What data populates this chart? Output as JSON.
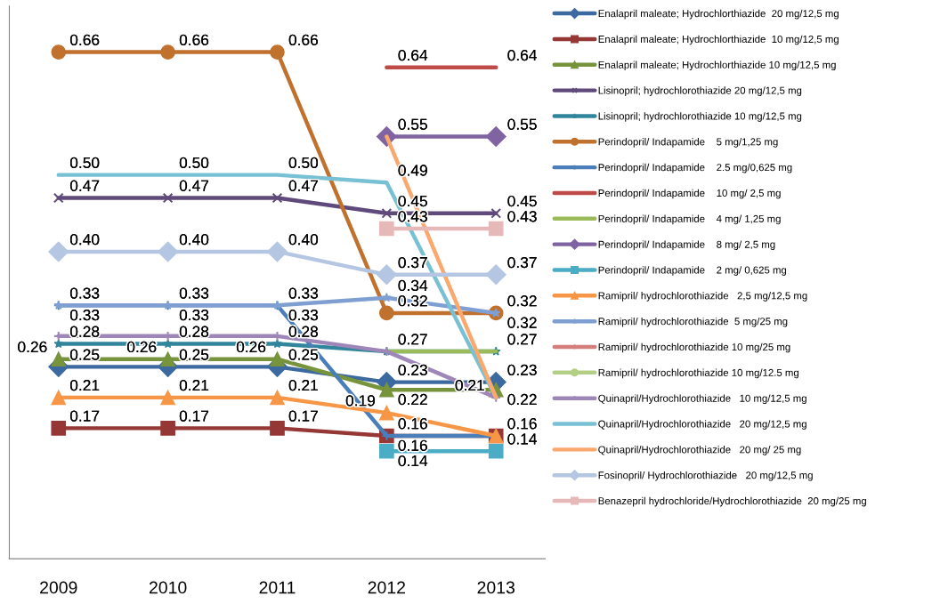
{
  "chart_data": {
    "type": "line",
    "categories": [
      "2009",
      "2010",
      "2011",
      "2012",
      "2013"
    ],
    "ylim": [
      0,
      0.72
    ],
    "tick_labels": "x",
    "grid": false,
    "legend": "right",
    "line_style": "solid",
    "series": [
      {
        "name": "Enalapril maleate; Hydrochlorthiazide  20 mg/12,5 mg",
        "color": "#3c6aa0",
        "marker": "diamond",
        "values": [
          0.25,
          0.25,
          0.25,
          0.23,
          0.23
        ],
        "value_labels": [
          "0.25",
          "0.25",
          "0.25",
          "0.23",
          "0.23"
        ]
      },
      {
        "name": "Enalapril maleate; Hydrochlorthiazide  10 mg/12,5 mg",
        "color": "#953735",
        "marker": "square",
        "values": [
          0.17,
          0.17,
          0.17,
          0.16,
          0.16
        ],
        "value_labels": [
          "0.17",
          "0.17",
          "0.17",
          "0.16",
          null
        ]
      },
      {
        "name": "Enalapril maleate; Hydrochlorthiazide 10 mg/12,5 mg",
        "color": "#77933c",
        "marker": "triangle",
        "values": [
          0.26,
          0.26,
          0.26,
          0.22,
          0.22
        ],
        "value_labels": [
          "0.26",
          "0.26",
          "0.26",
          "0.22",
          "0.22"
        ]
      },
      {
        "name": "Lisinopril; hydrochlorothiazide 20 mg/12,5 mg",
        "color": "#604a7b",
        "marker": "cross",
        "values": [
          0.47,
          0.47,
          0.47,
          0.45,
          0.45
        ],
        "value_labels": [
          "0.47",
          "0.47",
          "0.47",
          "0.45",
          "0.45"
        ]
      },
      {
        "name": "Lisinopril; hydrochlorothiazide 10 mg/12,5 mg",
        "color": "#31859c",
        "marker": "star",
        "values": [
          0.28,
          0.28,
          0.28,
          0.27,
          0.27
        ],
        "value_labels": [
          "0.28",
          "0.28",
          "0.28",
          "0.27",
          "0.27"
        ]
      },
      {
        "name": "Perindopril/ Indapamide    5 mg/1,25 mg",
        "color": "#c0712e",
        "marker": "circle",
        "values": [
          0.66,
          0.66,
          0.66,
          0.32,
          0.32
        ],
        "value_labels": [
          "0.66",
          "0.66",
          "0.66",
          "0.32",
          "0.32"
        ]
      },
      {
        "name": "Perindopril/ Indapamide    2.5 mg/0,625 mg",
        "color": "#4a7ebb",
        "marker": "plus",
        "values": [
          0.33,
          0.33,
          0.33,
          0.16,
          0.16
        ],
        "value_labels": [
          "0.33",
          "0.33",
          "0.33",
          "0.16",
          null
        ]
      },
      {
        "name": "Perindopril/ Indapamide    10 mg/ 2,5 mg",
        "color": "#be4b48",
        "marker": "none",
        "values": [
          null,
          null,
          null,
          0.64,
          0.64
        ],
        "value_labels": [
          null,
          null,
          null,
          "0.64",
          "0.64"
        ]
      },
      {
        "name": "Perindopril/ Indapamide    4 mg/ 1,25 mg",
        "color": "#9bbb59",
        "marker": "none",
        "values": [
          null,
          null,
          null,
          0.27,
          0.27
        ],
        "value_labels": [
          null,
          null,
          null,
          null,
          null
        ]
      },
      {
        "name": "Perindopril/ Indapamide    8 mg/ 2,5 mg",
        "color": "#8064a2",
        "marker": "diamond",
        "values": [
          null,
          null,
          null,
          0.55,
          0.55
        ],
        "value_labels": [
          null,
          null,
          null,
          "0.55",
          "0.55"
        ]
      },
      {
        "name": "Perindopril/ Indapamide    2 mg/ 0,625 mg",
        "color": "#4bacc6",
        "marker": "square",
        "values": [
          null,
          null,
          null,
          0.14,
          0.14
        ],
        "value_labels": [
          null,
          null,
          null,
          "0.14",
          "0.14"
        ]
      },
      {
        "name": "Ramipril/ hydrochlorothiazide   2,5 mg/12,5 mg",
        "color": "#f79646",
        "marker": "triangle",
        "values": [
          0.21,
          0.21,
          0.21,
          0.19,
          0.16
        ],
        "value_labels": [
          "0.21",
          "0.21",
          "0.21",
          "0.19",
          "0.16"
        ]
      },
      {
        "name": "Ramipril/ hydrochlorothiazide  5 mg/25 mg",
        "color": "#7f9fd3",
        "marker": "star",
        "values": [
          0.33,
          0.33,
          0.33,
          0.34,
          0.32
        ],
        "value_labels": [
          "0.33",
          "0.33",
          "0.33",
          "0.34",
          "0.32"
        ]
      },
      {
        "name": "Ramipril/ hydrochlorothiazide 10 mg/25 mg",
        "color": "#d47f7c",
        "marker": "star",
        "values": [
          null,
          null,
          null,
          null,
          null
        ],
        "value_labels": [
          null,
          null,
          null,
          null,
          null
        ]
      },
      {
        "name": "Ramipril/ hydrochlorothiazide 10 mg/12.5 mg",
        "color": "#b3cf85",
        "marker": "circle",
        "values": [
          null,
          null,
          null,
          null,
          null
        ],
        "value_labels": [
          null,
          null,
          null,
          null,
          null
        ]
      },
      {
        "name": "Quinapril/Hydrochlorothiazide   10 mg/12,5 mg",
        "color": "#9e86b9",
        "marker": "plus",
        "values": [
          0.29,
          0.29,
          0.29,
          0.27,
          0.21
        ],
        "value_labels": [
          null,
          null,
          null,
          null,
          "0.21"
        ]
      },
      {
        "name": "Quinapril/Hydrochlorothiazide   20 mg/12,5 mg",
        "color": "#78c0d4",
        "marker": "none",
        "values": [
          0.5,
          0.5,
          0.5,
          0.49,
          0.21
        ],
        "value_labels": [
          "0.50",
          "0.50",
          "0.50",
          "0.49",
          null
        ]
      },
      {
        "name": "Quinapril/Hydrochlorothiazide   20 mg/ 25 mg",
        "color": "#fba86f",
        "marker": "none",
        "values": [
          null,
          null,
          null,
          0.55,
          0.21
        ],
        "value_labels": [
          null,
          null,
          null,
          null,
          null
        ]
      },
      {
        "name": "Fosinopril/ Hydrochlorothiazide   20 mg/12,5 mg",
        "color": "#b4c6e2",
        "marker": "diamond",
        "values": [
          0.4,
          0.4,
          0.4,
          0.37,
          0.37
        ],
        "value_labels": [
          "0.40",
          "0.40",
          "0.40",
          "0.37",
          "0.37"
        ]
      },
      {
        "name": "Benazepril hydrochloride/Hydrochlorothiazide  20 mg/25 mg",
        "color": "#e6b9b8",
        "marker": "square",
        "values": [
          null,
          null,
          null,
          0.43,
          0.43
        ],
        "value_labels": [
          null,
          null,
          null,
          "0.43",
          "0.43"
        ]
      }
    ]
  }
}
